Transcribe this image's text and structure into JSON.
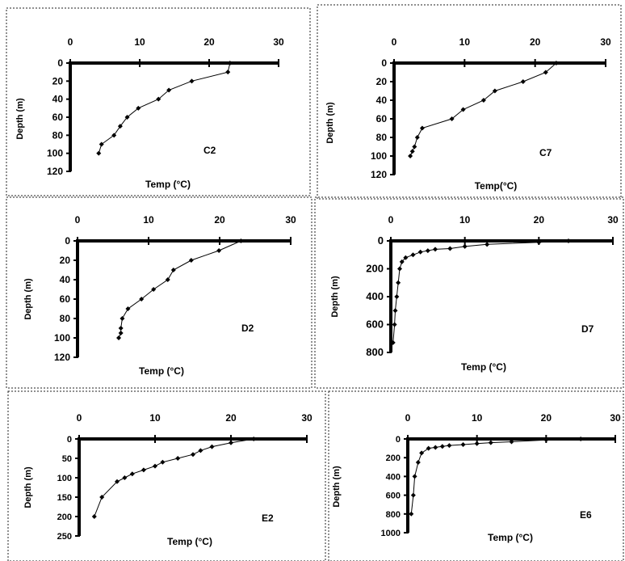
{
  "chart_data": [
    {
      "type": "line",
      "panel_label": "C2",
      "xlabel": "Temp (°C)",
      "ylabel": "Depth (m)",
      "xlim": [
        0,
        30
      ],
      "ylim": [
        0,
        120
      ],
      "y_inverted": true,
      "x_ticks": [
        "0",
        "10",
        "20",
        "30"
      ],
      "y_ticks": [
        "0",
        "20",
        "40",
        "60",
        "80",
        "100",
        "120"
      ],
      "x_axis_position": "top",
      "series": [
        {
          "x": [
            23,
            22.7,
            17.5,
            14.2,
            12.7,
            9.8,
            8.2,
            7.2,
            6.3,
            4.5,
            4.1
          ],
          "y": [
            0,
            10,
            20,
            30,
            40,
            50,
            60,
            70,
            80,
            90,
            100
          ]
        }
      ]
    },
    {
      "type": "line",
      "panel_label": "C7",
      "xlabel": "Temp(°C)",
      "ylabel": "Depth (m)",
      "xlim": [
        0,
        30
      ],
      "ylim": [
        0,
        120
      ],
      "y_inverted": true,
      "x_ticks": [
        "0",
        "10",
        "20",
        "30"
      ],
      "y_ticks": [
        "0",
        "20",
        "40",
        "60",
        "80",
        "100",
        "120"
      ],
      "x_axis_position": "top",
      "series": [
        {
          "x": [
            23,
            21.5,
            18.3,
            14.3,
            12.7,
            9.8,
            8.2,
            4,
            3.3,
            2.9,
            2.6,
            2.3
          ],
          "y": [
            0,
            10,
            20,
            30,
            40,
            50,
            60,
            70,
            80,
            90,
            95,
            100
          ]
        }
      ]
    },
    {
      "type": "line",
      "panel_label": "D2",
      "xlabel": "Temp (°C)",
      "ylabel": "Depth (m)",
      "xlim": [
        0,
        30
      ],
      "ylim": [
        0,
        120
      ],
      "y_inverted": true,
      "x_ticks": [
        "0",
        "10",
        "20",
        "30"
      ],
      "y_ticks": [
        "0",
        "20",
        "40",
        "60",
        "80",
        "100",
        "120"
      ],
      "x_axis_position": "top",
      "series": [
        {
          "x": [
            23,
            19.9,
            16,
            13.5,
            12.7,
            10.7,
            9,
            7.1,
            6.3,
            6.1,
            6.1,
            5.8
          ],
          "y": [
            0,
            10,
            20,
            30,
            40,
            50,
            60,
            70,
            80,
            90,
            95,
            100
          ]
        }
      ]
    },
    {
      "type": "line",
      "panel_label": "D7",
      "xlabel": "Temp (°C)",
      "ylabel": "Depth (m)",
      "xlim": [
        0,
        30
      ],
      "ylim": [
        0,
        800
      ],
      "y_inverted": true,
      "x_ticks": [
        "0",
        "10",
        "20",
        "30"
      ],
      "y_ticks": [
        "0",
        "200",
        "400",
        "600",
        "800"
      ],
      "x_axis_position": "top",
      "series": [
        {
          "x": [
            24,
            20,
            13,
            10,
            8,
            6,
            5,
            4,
            3,
            2,
            1.5,
            1.2,
            1,
            0.8,
            0.6,
            0.5,
            0.3
          ],
          "y": [
            0,
            10,
            25,
            40,
            55,
            60,
            70,
            80,
            100,
            120,
            150,
            200,
            300,
            400,
            500,
            600,
            730
          ]
        }
      ]
    },
    {
      "type": "line",
      "panel_label": "E2",
      "xlabel": "Temp (°C)",
      "ylabel": "Depth (m)",
      "xlim": [
        0,
        30
      ],
      "ylim": [
        0,
        250
      ],
      "y_inverted": true,
      "x_ticks": [
        "0",
        "10",
        "20",
        "30"
      ],
      "y_ticks": [
        "0",
        "50",
        "100",
        "150",
        "200",
        "250"
      ],
      "x_axis_position": "top",
      "series": [
        {
          "x": [
            23,
            20,
            17.5,
            16,
            15,
            13,
            11,
            10,
            8.5,
            7,
            6,
            5,
            3,
            2
          ],
          "y": [
            0,
            10,
            20,
            30,
            40,
            50,
            60,
            70,
            80,
            90,
            100,
            110,
            150,
            200
          ]
        }
      ]
    },
    {
      "type": "line",
      "panel_label": "E6",
      "xlabel": "Temp (°C)",
      "ylabel": "Depth (m)",
      "xlim": [
        0,
        30
      ],
      "ylim": [
        0,
        1000
      ],
      "y_inverted": true,
      "x_ticks": [
        "0",
        "10",
        "20",
        "30"
      ],
      "y_ticks": [
        "0",
        "200",
        "400",
        "600",
        "800",
        "1000"
      ],
      "x_axis_position": "top",
      "series": [
        {
          "x": [
            25,
            20,
            15,
            12,
            10,
            8,
            6,
            5,
            4,
            3,
            2,
            1.5,
            1,
            0.8,
            0.5
          ],
          "y": [
            0,
            10,
            30,
            40,
            50,
            60,
            70,
            80,
            90,
            100,
            150,
            250,
            400,
            600,
            800
          ]
        }
      ]
    }
  ]
}
